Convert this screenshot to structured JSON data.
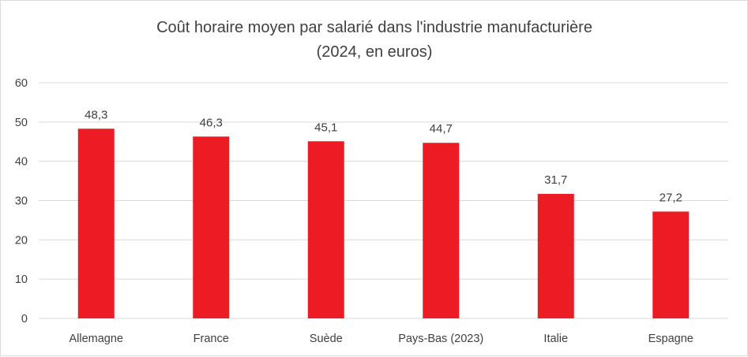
{
  "chart_data": {
    "type": "bar",
    "title_line1": "Coût horaire moyen par salarié dans l'industrie manufacturière",
    "title_line2": "(2024, en euros)",
    "categories": [
      "Allemagne",
      "France",
      "Suède",
      "Pays-Bas (2023)",
      "Italie",
      "Espagne"
    ],
    "values": [
      48.3,
      46.3,
      45.1,
      44.7,
      31.7,
      27.2
    ],
    "data_labels": [
      "48,3",
      "46,3",
      "45,1",
      "44,7",
      "31,7",
      "27,2"
    ],
    "yticks": [
      0,
      10,
      20,
      30,
      40,
      50,
      60
    ],
    "ylim": [
      0,
      60
    ],
    "xlabel": "",
    "ylabel": "",
    "grid": true,
    "bar_color": "#ed1c24",
    "grid_color": "#d9d9d9",
    "text_color": "#404040"
  }
}
